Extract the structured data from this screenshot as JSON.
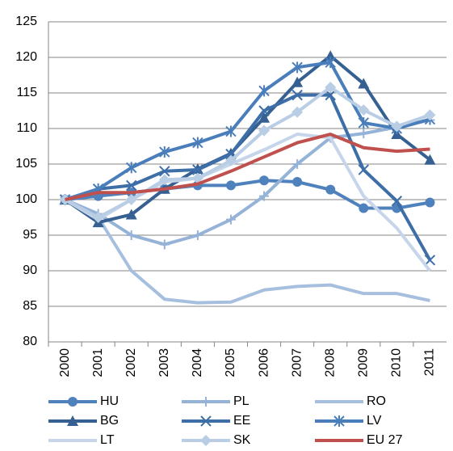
{
  "chart_data": {
    "type": "line",
    "categories": [
      "2000",
      "2001",
      "2002",
      "2003",
      "2004",
      "2005",
      "2006",
      "2007",
      "2008",
      "2009",
      "2010",
      "2011"
    ],
    "ylim": [
      80,
      125
    ],
    "yticks": [
      80,
      85,
      90,
      95,
      100,
      105,
      110,
      115,
      120,
      125
    ],
    "grid": true,
    "legend": "bottom",
    "series": [
      {
        "name": "HU",
        "color": "#4f81bd",
        "marker": "circle",
        "values": [
          100,
          100.5,
          101,
          101.5,
          102,
          102,
          102.7,
          102.5,
          101.4,
          98.8,
          98.8,
          99.6
        ]
      },
      {
        "name": "PL",
        "color": "#95b3d7",
        "marker": "plus",
        "values": [
          100,
          98,
          95,
          93.7,
          95,
          97.2,
          100.5,
          105,
          108.7,
          109.3,
          110.2,
          111.2
        ]
      },
      {
        "name": "RO",
        "color": "#a7bfde",
        "marker": "none",
        "values": [
          100,
          97.5,
          90,
          86,
          85.5,
          85.6,
          87.3,
          87.8,
          88,
          86.8,
          86.8,
          85.8
        ]
      },
      {
        "name": "BG",
        "color": "#366092",
        "marker": "triangle",
        "values": [
          100,
          96.8,
          97.9,
          101.5,
          104.3,
          106.5,
          111.5,
          116.5,
          120.2,
          116.3,
          109.2,
          105.6
        ]
      },
      {
        "name": "EE",
        "color": "#3d6ea8",
        "marker": "x",
        "values": [
          100,
          101.5,
          102,
          104,
          104.2,
          106.4,
          112.5,
          114.7,
          114.7,
          104.2,
          99.8,
          91.5
        ]
      },
      {
        "name": "LV",
        "color": "#4a7ebb",
        "marker": "star",
        "values": [
          100,
          101.5,
          104.5,
          106.7,
          108,
          109.6,
          115.3,
          118.6,
          119.3,
          110.8,
          110,
          111.3
        ]
      },
      {
        "name": "LT",
        "color": "#c6d5ea",
        "marker": "none",
        "values": [
          100,
          97.2,
          100,
          102.5,
          103,
          105,
          107,
          109.2,
          108.7,
          100.5,
          96,
          90
        ]
      },
      {
        "name": "SK",
        "color": "#b9cde5",
        "marker": "diamond",
        "values": [
          100,
          97.5,
          100,
          102.8,
          103,
          105.5,
          109.7,
          112.3,
          115.8,
          112.6,
          110.3,
          111.9
        ]
      },
      {
        "name": "EU 27",
        "color": "#c0504d",
        "marker": "none",
        "values": [
          100,
          101,
          101,
          101.5,
          102.2,
          104,
          106,
          108,
          109.2,
          107.3,
          106.8,
          107.1
        ]
      }
    ]
  }
}
